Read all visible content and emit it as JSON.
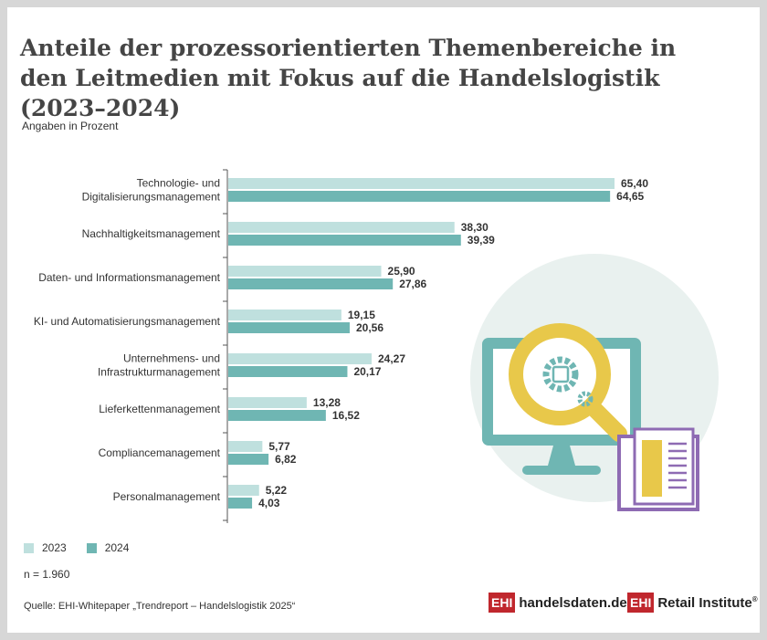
{
  "title_lines": [
    "Anteile der prozessorientierten Themenbereiche in",
    "den Leitmedien mit Fokus auf die Handelslogistik (2023–2024)"
  ],
  "subtitle": "Angaben in Prozent",
  "n_label": "n = 1.960",
  "source": "Quelle: EHI-Whitepaper „Trendreport – Handelslogistik 2025“",
  "logos": [
    {
      "mark": "EHI",
      "name": "handelsdaten.de"
    },
    {
      "mark": "EHI",
      "name": "Retail Institute",
      "reg": "®"
    }
  ],
  "colors": {
    "series_2023": "#bfe0de",
    "series_2024": "#6fb6b3",
    "background": "#d7d7d7",
    "logo_red": "#c0272d"
  },
  "chart_data": {
    "type": "bar",
    "orientation": "horizontal",
    "categories": [
      [
        "Technologie- und",
        "Digitalisierungsmanagement"
      ],
      [
        "Nachhaltigkeitsmanagement"
      ],
      [
        "Daten- und Informationsmanagement"
      ],
      [
        "KI- und Automatisierungsmanagement"
      ],
      [
        "Unternehmens- und",
        "Infrastrukturmanagement"
      ],
      [
        "Lieferkettenmanagement"
      ],
      [
        "Compliancemanagement"
      ],
      [
        "Personalmanagement"
      ]
    ],
    "series": [
      {
        "name": "2023",
        "values": [
          65.4,
          38.3,
          25.9,
          19.15,
          24.27,
          13.28,
          5.77,
          5.22
        ],
        "labels": [
          "65,40",
          "38,30",
          "25,90",
          "19,15",
          "24,27",
          "13,28",
          "5,77",
          "5,22"
        ]
      },
      {
        "name": "2024",
        "values": [
          64.65,
          39.39,
          27.86,
          20.56,
          20.17,
          16.52,
          6.82,
          4.03
        ],
        "labels": [
          "64,65",
          "39,39",
          "27,86",
          "20,56",
          "20,17",
          "16,52",
          "6,82",
          "4,03"
        ]
      }
    ],
    "xlim": [
      0,
      65.4
    ],
    "legend_position": "bottom-left",
    "grid": false
  }
}
